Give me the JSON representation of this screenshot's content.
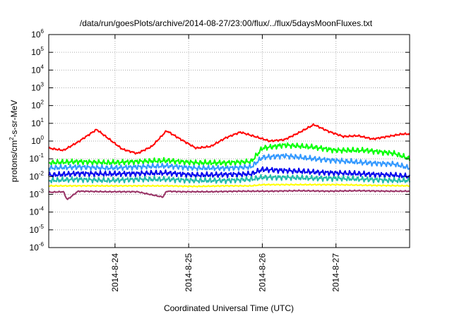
{
  "chart_data": {
    "type": "line",
    "title": "/data/run/goesPlots/archive/2014-08-27/23:00/flux/../flux/5daysMoonFluxes.txt",
    "xlabel": "Coordinated Universal Time (UTC)",
    "ylabel": {
      "base": "protons/cm",
      "sup": "2",
      "rest": "-s-sr-MeV"
    },
    "yscale": "log",
    "ylim_exp": [
      -6,
      6
    ],
    "y_ticks": [
      {
        "base": "10",
        "exp": "-6",
        "e": -6
      },
      {
        "base": "10",
        "exp": "-5",
        "e": -5
      },
      {
        "base": "10",
        "exp": "-4",
        "e": -4
      },
      {
        "base": "10",
        "exp": "-3",
        "e": -3
      },
      {
        "base": "10",
        "exp": "-2",
        "e": -2
      },
      {
        "base": "10",
        "exp": "-1",
        "e": -1
      },
      {
        "base": "10",
        "exp": "0",
        "e": 0
      },
      {
        "base": "10",
        "exp": "1",
        "e": 1
      },
      {
        "base": "10",
        "exp": "2",
        "e": 2
      },
      {
        "base": "10",
        "exp": "3",
        "e": 3
      },
      {
        "base": "10",
        "exp": "4",
        "e": 4
      },
      {
        "base": "10",
        "exp": "5",
        "e": 5
      },
      {
        "base": "10",
        "exp": "6",
        "e": 6
      }
    ],
    "x_range_days": [
      23.1,
      28.0
    ],
    "x_ticks": [
      {
        "label": "2014-8-24",
        "day": 24
      },
      {
        "label": "2014-8-25",
        "day": 25
      },
      {
        "label": "2014-8-26",
        "day": 26
      },
      {
        "label": "2014-8-27",
        "day": 27
      }
    ],
    "grid": true,
    "series": [
      {
        "color": "#ff0000",
        "x": [
          23.1,
          23.3,
          23.5,
          23.75,
          23.9,
          24.1,
          24.3,
          24.5,
          24.7,
          24.9,
          25.1,
          25.3,
          25.5,
          25.7,
          25.9,
          26.1,
          26.3,
          26.5,
          26.7,
          26.9,
          27.1,
          27.3,
          27.5,
          27.7,
          27.9,
          28.0
        ],
        "y": [
          0.4,
          0.3,
          0.9,
          4.5,
          1.5,
          0.35,
          0.2,
          0.5,
          3.8,
          1.2,
          0.4,
          0.5,
          1.5,
          3.2,
          1.8,
          1.0,
          1.2,
          3.0,
          8.5,
          3.5,
          1.8,
          2.0,
          1.3,
          1.8,
          2.5,
          2.5
        ]
      },
      {
        "color": "#00ff00",
        "x": [
          23.1,
          23.5,
          23.9,
          24.3,
          24.7,
          25.1,
          25.5,
          25.85,
          26.0,
          26.3,
          26.7,
          27.0,
          27.4,
          27.8,
          28.0
        ],
        "y": [
          0.06,
          0.07,
          0.06,
          0.07,
          0.08,
          0.06,
          0.06,
          0.07,
          0.4,
          0.6,
          0.45,
          0.3,
          0.3,
          0.2,
          0.1
        ]
      },
      {
        "color": "#3399ff",
        "x": [
          23.1,
          23.5,
          23.9,
          24.3,
          24.7,
          25.1,
          25.5,
          25.85,
          26.0,
          26.3,
          26.7,
          27.0,
          27.4,
          27.8,
          28.0
        ],
        "y": [
          0.03,
          0.035,
          0.03,
          0.035,
          0.04,
          0.03,
          0.03,
          0.035,
          0.12,
          0.15,
          0.1,
          0.08,
          0.06,
          0.05,
          0.03
        ]
      },
      {
        "color": "#0000ee",
        "x": [
          23.1,
          23.5,
          23.9,
          24.3,
          24.7,
          25.1,
          25.5,
          25.85,
          26.0,
          26.3,
          26.7,
          27.0,
          27.4,
          27.8,
          28.0
        ],
        "y": [
          0.012,
          0.015,
          0.014,
          0.015,
          0.016,
          0.012,
          0.013,
          0.014,
          0.025,
          0.022,
          0.018,
          0.016,
          0.014,
          0.012,
          0.01
        ]
      },
      {
        "color": "#22bbaa",
        "x": [
          23.1,
          23.5,
          23.9,
          24.3,
          24.7,
          25.1,
          25.5,
          25.85,
          26.0,
          26.3,
          26.7,
          27.0,
          27.4,
          27.8,
          28.0
        ],
        "y": [
          0.006,
          0.007,
          0.006,
          0.007,
          0.007,
          0.006,
          0.006,
          0.007,
          0.009,
          0.009,
          0.008,
          0.008,
          0.007,
          0.006,
          0.006
        ]
      },
      {
        "color": "#ffff00",
        "x": [
          23.1,
          23.5,
          23.9,
          24.3,
          24.7,
          25.1,
          25.5,
          25.85,
          26.0,
          26.5,
          27.0,
          27.5,
          28.0
        ],
        "y": [
          0.003,
          0.003,
          0.003,
          0.003,
          0.003,
          0.0028,
          0.003,
          0.003,
          0.0035,
          0.0035,
          0.0035,
          0.0032,
          0.003
        ]
      },
      {
        "color": "#993366",
        "x": [
          23.1,
          23.3,
          23.35,
          23.5,
          23.9,
          24.3,
          24.65,
          24.7,
          24.9,
          25.3,
          25.7,
          26.1,
          26.5,
          26.9,
          27.3,
          27.7,
          28.0
        ],
        "y": [
          0.0013,
          0.0014,
          0.0005,
          0.0015,
          0.0014,
          0.0014,
          0.0007,
          0.0015,
          0.0014,
          0.0014,
          0.0015,
          0.0015,
          0.0016,
          0.0015,
          0.0016,
          0.0015,
          0.0015
        ]
      }
    ]
  }
}
